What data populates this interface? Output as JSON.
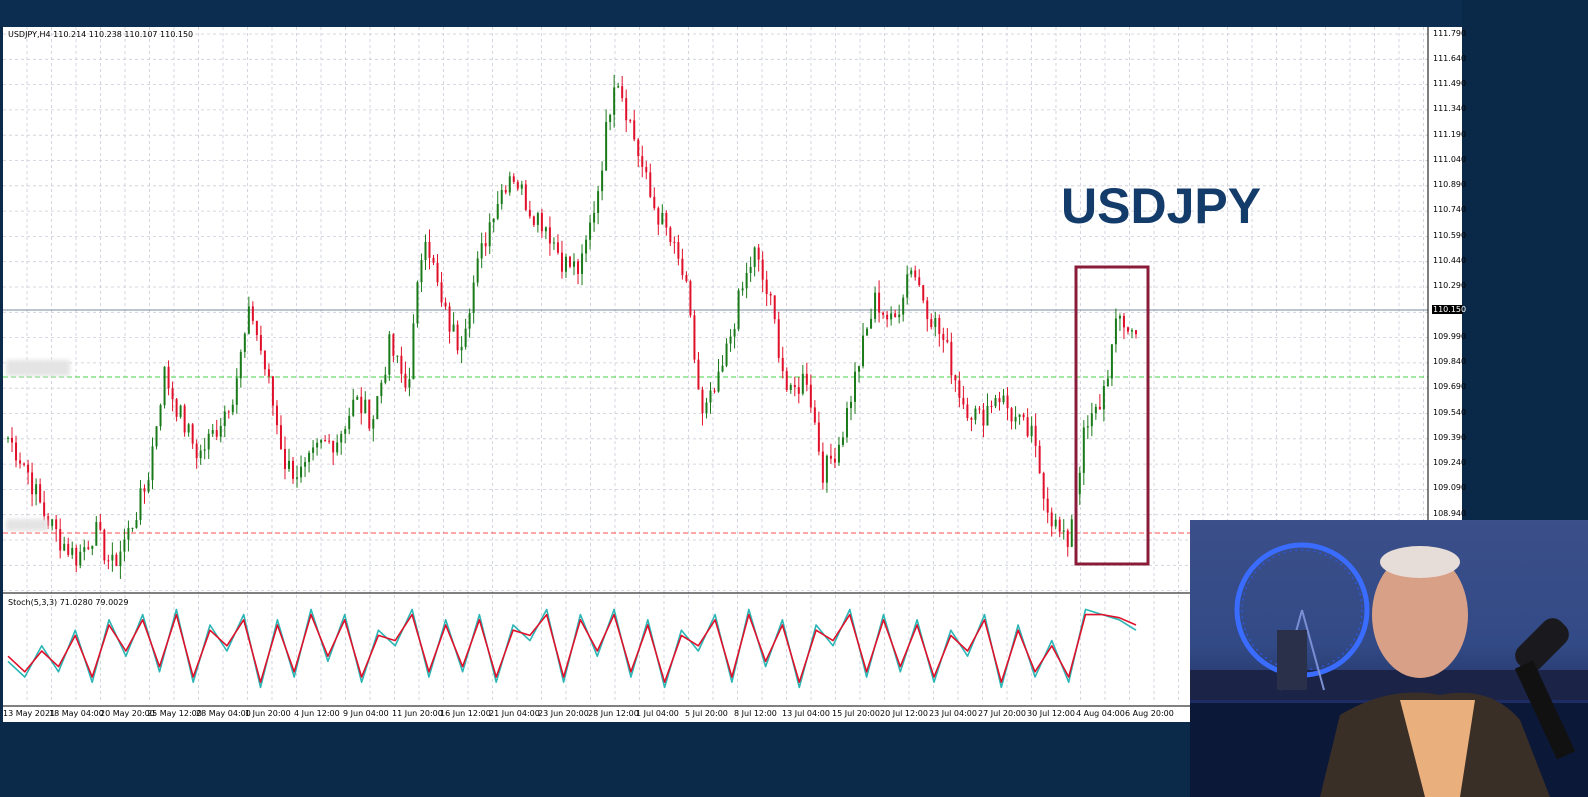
{
  "header": {
    "symbol_info": "USDJPY,H4 110.214 110.238 110.107 110.150",
    "title": "USDJPY"
  },
  "indicator": {
    "label": "Stoch(5,3,3) 71.0280 79.0029"
  },
  "price_axis": {
    "labels": [
      "111.790",
      "111.640",
      "111.490",
      "111.340",
      "111.190",
      "111.040",
      "110.890",
      "110.740",
      "110.590",
      "110.440",
      "110.290",
      "109.990",
      "109.840",
      "109.690",
      "109.540",
      "109.390",
      "109.240",
      "109.090",
      "108.940"
    ],
    "current_price": "110.150"
  },
  "time_axis": {
    "labels": [
      "13 May 2021",
      "18 May 04:00",
      "20 May 20:00",
      "25 May 12:00",
      "28 May 04:00",
      "1 Jun 20:00",
      "4 Jun 12:00",
      "9 Jun 04:00",
      "11 Jun 20:00",
      "16 Jun 12:00",
      "21 Jun 04:00",
      "23 Jun 20:00",
      "28 Jun 12:00",
      "1 Jul 04:00",
      "5 Jul 20:00",
      "8 Jul 12:00",
      "13 Jul 04:00",
      "15 Jul 20:00",
      "20 Jul 12:00",
      "23 Jul 04:00",
      "27 Jul 20:00",
      "30 Jul 12:00",
      "4 Aug 04:00",
      "6 Aug 20:00"
    ]
  },
  "colors": {
    "bull": "#1a7a1a",
    "bear": "#e0102a",
    "highlight_box": "#8a1c3a",
    "stoch_main": "#2bb5b5",
    "stoch_signal": "#e0102a",
    "grid": "#c9cdd8",
    "title": "#143c6b"
  },
  "chart_data": {
    "type": "candlestick",
    "title": "USDJPY",
    "timeframe": "H4",
    "ylim": [
      108.76,
      111.82
    ],
    "x": [
      "13 May",
      "18 May",
      "20 May",
      "25 May",
      "28 May",
      "1 Jun",
      "4 Jun",
      "9 Jun",
      "11 Jun",
      "16 Jun",
      "21 Jun",
      "23 Jun",
      "28 Jun",
      "1 Jul",
      "5 Jul",
      "8 Jul",
      "13 Jul",
      "15 Jul",
      "20 Jul",
      "23 Jul",
      "27 Jul",
      "30 Jul",
      "4 Aug",
      "6 Aug"
    ],
    "close_path": [
      109.6,
      109.45,
      109.2,
      109.05,
      108.95,
      109.1,
      108.9,
      109.1,
      109.35,
      109.95,
      109.7,
      109.5,
      109.65,
      109.85,
      110.3,
      109.9,
      109.45,
      109.4,
      109.55,
      109.6,
      109.8,
      109.7,
      110.1,
      109.85,
      110.75,
      110.3,
      110.1,
      110.5,
      110.85,
      111.05,
      110.85,
      110.75,
      110.55,
      110.5,
      110.95,
      111.6,
      111.25,
      110.9,
      110.7,
      110.45,
      109.7,
      109.9,
      110.3,
      110.6,
      110.3,
      109.8,
      109.95,
      109.4,
      109.6,
      110.0,
      110.35,
      110.2,
      110.55,
      110.3,
      110.1,
      109.8,
      109.7,
      109.85,
      109.7,
      109.6,
      109.2,
      109.0,
      109.6,
      109.8,
      110.25,
      110.15
    ]
  },
  "stoch_data": {
    "ylim": [
      0,
      100
    ],
    "main": [
      40,
      25,
      55,
      30,
      70,
      20,
      80,
      45,
      85,
      30,
      90,
      20,
      75,
      50,
      85,
      15,
      80,
      25,
      90,
      40,
      85,
      20,
      70,
      55,
      90,
      25,
      80,
      30,
      85,
      20,
      75,
      60,
      90,
      20,
      85,
      45,
      90,
      25,
      80,
      15,
      70,
      50,
      85,
      20,
      90,
      35,
      80,
      15,
      75,
      55,
      90,
      25,
      85,
      30,
      80,
      20,
      70,
      45,
      85,
      15,
      75,
      25,
      60,
      20,
      90,
      85,
      80,
      70
    ],
    "signal": [
      45,
      30,
      50,
      35,
      65,
      25,
      75,
      50,
      80,
      35,
      85,
      25,
      70,
      55,
      80,
      20,
      75,
      30,
      85,
      45,
      80,
      25,
      65,
      60,
      85,
      30,
      75,
      35,
      80,
      25,
      70,
      65,
      85,
      25,
      80,
      50,
      85,
      30,
      75,
      20,
      65,
      55,
      80,
      25,
      85,
      40,
      75,
      20,
      70,
      60,
      85,
      30,
      80,
      35,
      75,
      25,
      65,
      50,
      80,
      20,
      70,
      30,
      55,
      25,
      85,
      85,
      82,
      75
    ]
  }
}
